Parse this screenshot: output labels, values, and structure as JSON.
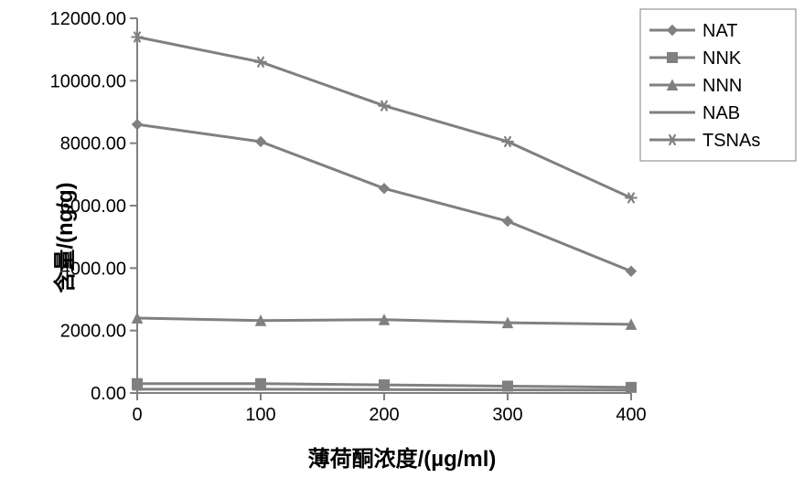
{
  "chart": {
    "type": "line",
    "background_color": "#ffffff",
    "ylabel": "含量/(ng/g)",
    "xlabel": "薄荷酮浓度/(µg/ml)",
    "label_fontsize": 24,
    "label_fontweight": "bold",
    "tick_fontsize": 20,
    "xlim": [
      0,
      400
    ],
    "ylim": [
      0,
      12000
    ],
    "ytick_step": 2000,
    "ytick_labels": [
      "0.00",
      "2000.00",
      "4000.00",
      "6000.00",
      "8000.00",
      "10000.00",
      "12000.00"
    ],
    "x_categories": [
      "0",
      "100",
      "200",
      "300",
      "400"
    ],
    "x_values": [
      0,
      100,
      200,
      300,
      400
    ],
    "axis_color": "#808080",
    "tick_color": "#808080",
    "plot_border": false,
    "series": [
      {
        "name": "NAT",
        "marker": "diamond",
        "color": "#808080",
        "line_width": 3,
        "marker_size": 11,
        "values": [
          8600,
          8050,
          6550,
          5500,
          3900
        ]
      },
      {
        "name": "NNK",
        "marker": "square",
        "color": "#808080",
        "line_width": 3,
        "marker_size": 11,
        "values": [
          300,
          300,
          260,
          220,
          180
        ]
      },
      {
        "name": "NNN",
        "marker": "triangle",
        "color": "#808080",
        "line_width": 3,
        "marker_size": 11,
        "values": [
          2400,
          2320,
          2350,
          2250,
          2200
        ]
      },
      {
        "name": "NAB",
        "marker": "dash",
        "color": "#808080",
        "line_width": 3,
        "marker_size": 11,
        "values": [
          120,
          120,
          110,
          100,
          90
        ]
      },
      {
        "name": "TSNAs",
        "marker": "star",
        "color": "#808080",
        "line_width": 3,
        "marker_size": 11,
        "values": [
          11400,
          10600,
          9200,
          8050,
          6250
        ]
      }
    ],
    "legend": {
      "position": "top-right",
      "border_color": "#808080",
      "background": "#ffffff",
      "fontsize": 20
    }
  }
}
